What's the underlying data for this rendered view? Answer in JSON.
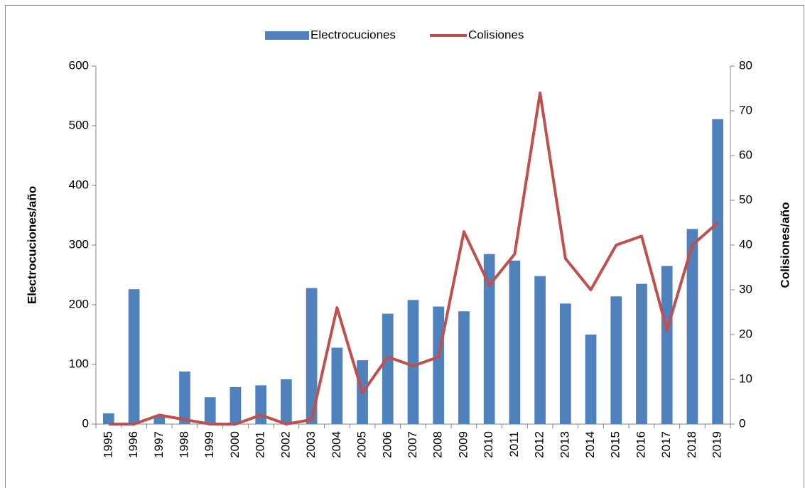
{
  "chart_data": {
    "type": "bar",
    "categories": [
      "1995",
      "1996",
      "1997",
      "1998",
      "1999",
      "2000",
      "2001",
      "2002",
      "2003",
      "2004",
      "2005",
      "2006",
      "2007",
      "2008",
      "2009",
      "2010",
      "2011",
      "2012",
      "2013",
      "2014",
      "2015",
      "2016",
      "2017",
      "2018",
      "2019"
    ],
    "series": [
      {
        "name": "Electrocuciones",
        "type": "bar",
        "color": "#4f81bd",
        "values": [
          18,
          226,
          15,
          88,
          45,
          62,
          65,
          75,
          228,
          128,
          107,
          185,
          208,
          197,
          189,
          285,
          274,
          248,
          202,
          150,
          214,
          235,
          265,
          327,
          511
        ]
      },
      {
        "name": "Colisiones",
        "type": "line",
        "axis": "y2",
        "color": "#c0504d",
        "values": [
          0,
          0,
          2,
          1,
          0,
          0,
          2,
          0,
          1,
          26,
          7,
          15,
          13,
          15,
          43,
          31,
          38,
          74,
          37,
          30,
          40,
          42,
          21,
          40,
          45
        ]
      }
    ],
    "ylabel": "Electrocuciones/año",
    "y2label": "Colisiones/año",
    "ylim": [
      0,
      600
    ],
    "yticks": [
      0,
      100,
      200,
      300,
      400,
      500,
      600
    ],
    "y2lim": [
      0,
      80
    ],
    "y2ticks": [
      0,
      10,
      20,
      30,
      40,
      50,
      60,
      70,
      80
    ],
    "legend": "top"
  }
}
